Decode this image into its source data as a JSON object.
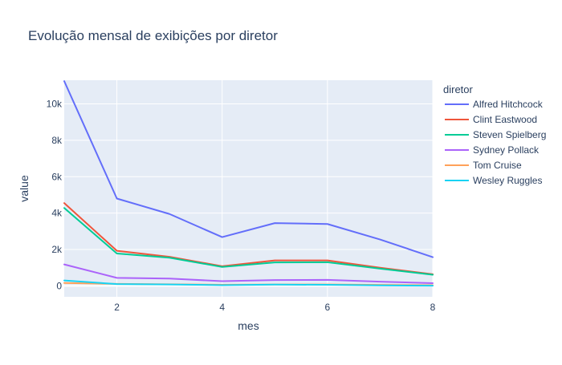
{
  "chart_data": {
    "type": "line",
    "title": "Evolução mensal de exibições por diretor",
    "xlabel": "mes",
    "ylabel": "value",
    "xlim": [
      1,
      8
    ],
    "ylim": [
      -600,
      11300
    ],
    "x_ticks": [
      2,
      4,
      6,
      8
    ],
    "x_tick_labels": [
      "2",
      "4",
      "6",
      "8"
    ],
    "y_ticks": [
      0,
      2000,
      4000,
      6000,
      8000,
      10000
    ],
    "y_tick_labels": [
      "0",
      "2k",
      "4k",
      "6k",
      "8k",
      "10k"
    ],
    "grid": true,
    "background": "#e5ecf6",
    "legend_title": "diretor",
    "legend_position": "right",
    "x": [
      1,
      2,
      3,
      4,
      5,
      6,
      7,
      8
    ],
    "series": [
      {
        "name": "Alfred Hitchcock",
        "color": "#636efa",
        "values": [
          11250,
          4800,
          3950,
          2680,
          3450,
          3400,
          2550,
          1580
        ]
      },
      {
        "name": "Clint Eastwood",
        "color": "#EF553B",
        "values": [
          4550,
          1930,
          1600,
          1080,
          1400,
          1400,
          1000,
          640
        ]
      },
      {
        "name": "Steven Spielberg",
        "color": "#00cc96",
        "values": [
          4280,
          1780,
          1550,
          1040,
          1290,
          1300,
          950,
          610
        ]
      },
      {
        "name": "Sydney Pollack",
        "color": "#ab63fa",
        "values": [
          1180,
          440,
          400,
          260,
          320,
          330,
          230,
          150
        ]
      },
      {
        "name": "Tom Cruise",
        "color": "#FFA15A",
        "values": [
          160,
          110,
          90,
          60,
          80,
          80,
          55,
          40
        ]
      },
      {
        "name": "Wesley Ruggles",
        "color": "#19d3f3",
        "values": [
          300,
          100,
          80,
          40,
          70,
          60,
          30,
          10
        ]
      }
    ]
  }
}
